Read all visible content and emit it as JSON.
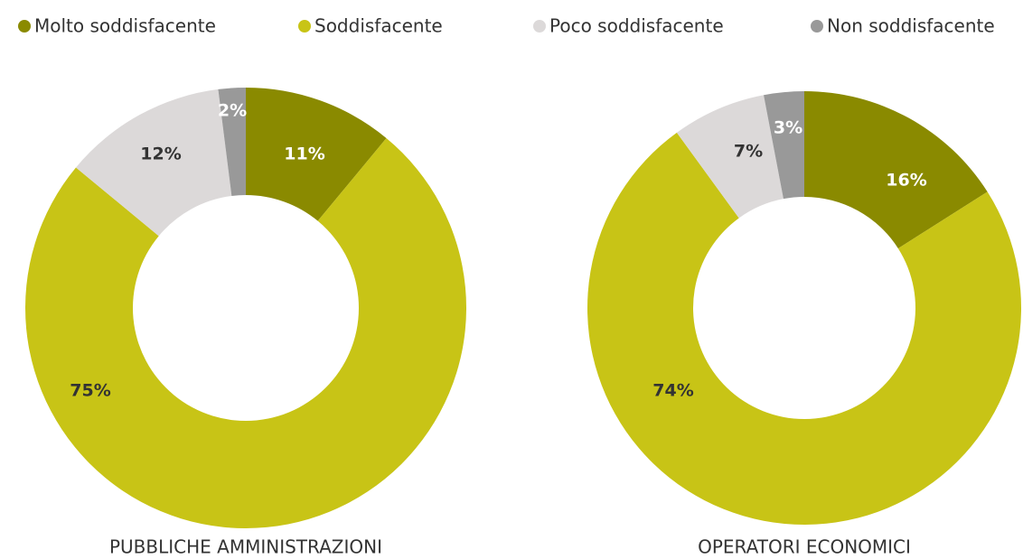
{
  "legend": {
    "categories": [
      "Molto soddisfacente",
      "Soddisfacente",
      "Poco soddisfacente",
      "Non soddisfacente"
    ],
    "colors": [
      "#8a8a00",
      "#c8c416",
      "#dcd9d9",
      "#999999"
    ]
  },
  "chart_data": [
    {
      "type": "pie",
      "title": "PUBBLICHE AMMINISTRAZIONI",
      "values": [
        11,
        75,
        12,
        2
      ],
      "value_labels": [
        "11%",
        "75%",
        "12%",
        "2%"
      ]
    },
    {
      "type": "pie",
      "title": "OPERATORI ECONOMICI",
      "values": [
        16,
        74,
        7,
        3
      ],
      "value_labels": [
        "16%",
        "74%",
        "7%",
        "3%"
      ]
    }
  ]
}
